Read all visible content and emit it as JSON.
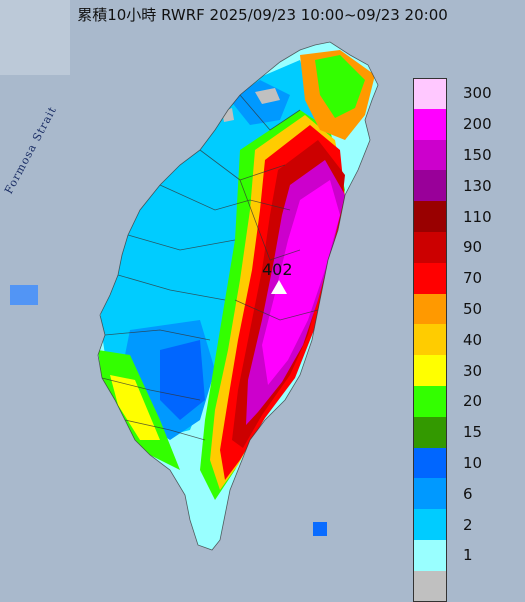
{
  "title": "累積10小時 RWRF 2025/09/23 10:00~09/23 20:00",
  "strait_label": "Formosa Strait",
  "peak_value": "402",
  "peak_marker_icon": "triangle-icon",
  "colors": {
    "sea": "#a9b9cc",
    "land_low": "#9ffff5"
  },
  "legend": [
    {
      "label": "300",
      "color": "#ffc8ff"
    },
    {
      "label": "200",
      "color": "#ff00ff"
    },
    {
      "label": "150",
      "color": "#cc00cc"
    },
    {
      "label": "130",
      "color": "#990099"
    },
    {
      "label": "110",
      "color": "#990000"
    },
    {
      "label": "90",
      "color": "#cc0000"
    },
    {
      "label": "70",
      "color": "#ff0000"
    },
    {
      "label": "50",
      "color": "#ff9900"
    },
    {
      "label": "40",
      "color": "#ffcc00"
    },
    {
      "label": "30",
      "color": "#ffff00"
    },
    {
      "label": "20",
      "color": "#33ff00"
    },
    {
      "label": "15",
      "color": "#339900"
    },
    {
      "label": "10",
      "color": "#0066ff"
    },
    {
      "label": "6",
      "color": "#0099ff"
    },
    {
      "label": "2",
      "color": "#00ccff"
    },
    {
      "label": "1",
      "color": "#99ffff"
    },
    {
      "label": "",
      "color": "#c0c0c0"
    }
  ]
}
